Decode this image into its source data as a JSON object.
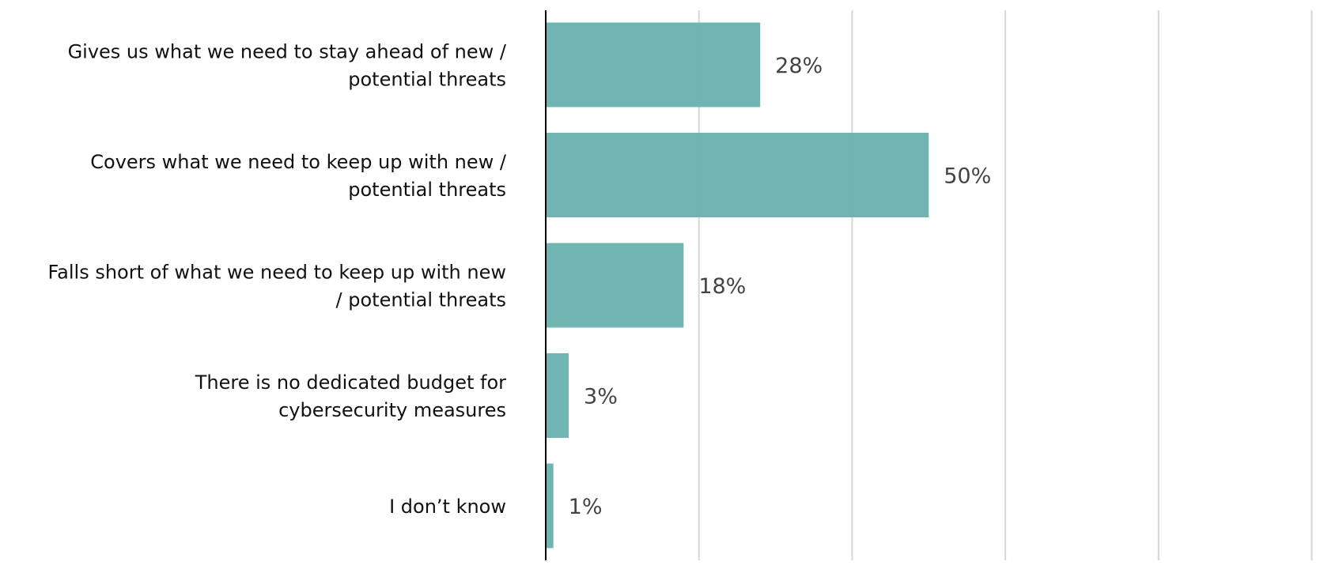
{
  "chart_data": {
    "type": "bar",
    "orientation": "horizontal",
    "title": "",
    "xlabel": "",
    "ylabel": "",
    "xlim": [
      0,
      100
    ],
    "grid": true,
    "gridline_step": 20,
    "bar_color": "#6cb3b1",
    "categories": [
      [
        "Gives us what we need to stay ahead of new /",
        "potential threats"
      ],
      [
        "Covers what we need to keep up with new /",
        "potential threats"
      ],
      [
        "Falls short of what we need to keep up with new",
        "/ potential threats"
      ],
      [
        "There is no dedicated budget for",
        "cybersecurity measures"
      ],
      [
        "I don’t know"
      ]
    ],
    "values": [
      28,
      50,
      18,
      3,
      1
    ],
    "value_labels": [
      "28%",
      "50%",
      "18%",
      "3%",
      "1%"
    ]
  }
}
